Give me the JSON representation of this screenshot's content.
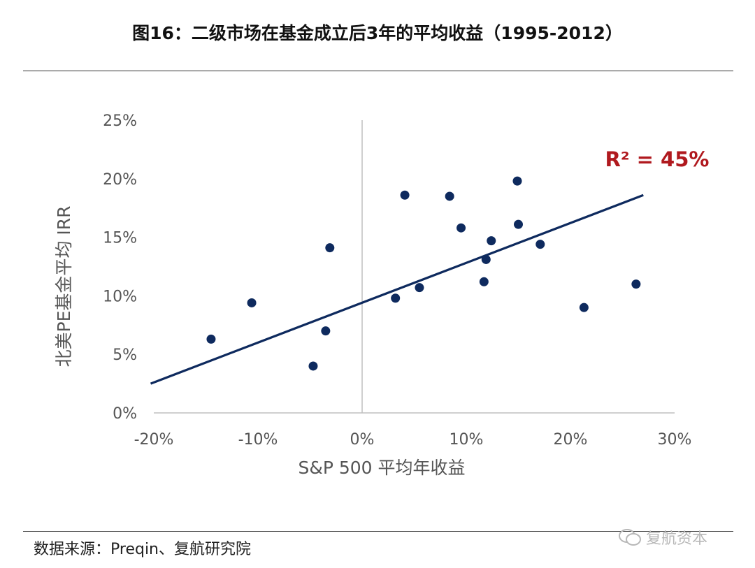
{
  "title": "图16：二级市场在基金成立后3年的平均收益（1995-2012）",
  "source": "数据来源：Preqin、复航研究院",
  "watermark": "复航资本",
  "watermark_icon": "wechat-icon",
  "chart_data": {
    "type": "scatter",
    "xlabel": "S&P 500 平均年收益",
    "ylabel": "北美PE基金平均 IRR",
    "xlim": [
      -20,
      30
    ],
    "ylim": [
      0,
      25
    ],
    "x_ticks": [
      -20,
      -10,
      0,
      10,
      20,
      30
    ],
    "y_ticks": [
      0,
      5,
      10,
      15,
      20,
      25
    ],
    "x_tick_labels": [
      "-20%",
      "-10%",
      "0%",
      "10%",
      "20%",
      "30%"
    ],
    "y_tick_labels": [
      "0%",
      "5%",
      "10%",
      "15%",
      "20%",
      "25%"
    ],
    "points": [
      {
        "x": -14.5,
        "y": 6.3
      },
      {
        "x": -10.6,
        "y": 9.4
      },
      {
        "x": -4.7,
        "y": 4.0
      },
      {
        "x": -3.5,
        "y": 7.0
      },
      {
        "x": -3.1,
        "y": 14.1
      },
      {
        "x": 3.2,
        "y": 9.8
      },
      {
        "x": 4.1,
        "y": 18.6
      },
      {
        "x": 5.5,
        "y": 10.7
      },
      {
        "x": 8.4,
        "y": 18.5
      },
      {
        "x": 9.5,
        "y": 15.8
      },
      {
        "x": 11.7,
        "y": 11.2
      },
      {
        "x": 11.9,
        "y": 13.1
      },
      {
        "x": 12.4,
        "y": 14.7
      },
      {
        "x": 14.9,
        "y": 19.8
      },
      {
        "x": 15.0,
        "y": 16.1
      },
      {
        "x": 17.1,
        "y": 14.4
      },
      {
        "x": 21.3,
        "y": 9.0
      },
      {
        "x": 26.3,
        "y": 11.0
      }
    ],
    "trendline": {
      "x": [
        -20.3,
        27.0
      ],
      "y": [
        2.5,
        18.6
      ]
    },
    "annotation": "R² = 45%",
    "colors": {
      "points": "#0e2a5e",
      "trendline": "#0e2a5e",
      "annotation": "#b0191e",
      "axis": "#bfbfbf"
    }
  }
}
